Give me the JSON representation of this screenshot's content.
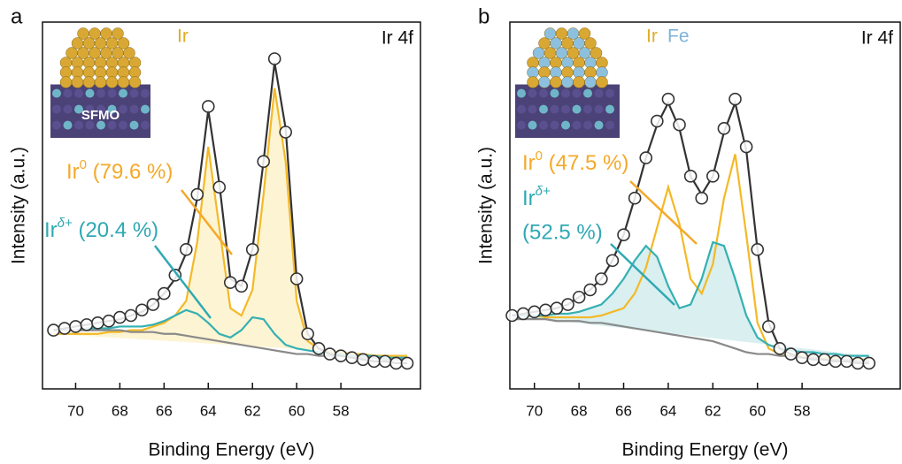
{
  "chart_data": [
    {
      "type": "line",
      "panel_label": "a",
      "corner_label": "Ir 4f",
      "x_label": "Binding Energy (eV)",
      "y_label": "Intensity (a.u.)",
      "xlim": [
        71.5,
        54.4
      ],
      "xticks": [
        70,
        68,
        66,
        64,
        62,
        60,
        58
      ],
      "ylim": [
        0,
        100
      ],
      "x": [
        71,
        70.5,
        70,
        69.5,
        69,
        68.5,
        68,
        67.5,
        67,
        66.5,
        66,
        65.5,
        65,
        64.5,
        64,
        63.5,
        63,
        62.5,
        62,
        61.5,
        61,
        60.5,
        60,
        59.5,
        59,
        58.5,
        58,
        57.5,
        57,
        56.5,
        56,
        55.5,
        55
      ],
      "series": [
        {
          "color": "#f4b926",
          "fill": "#fdf4d3",
          "values": [
            15,
            15,
            15,
            15,
            15,
            15.5,
            15.5,
            16,
            16,
            17,
            18,
            20,
            24,
            40,
            66,
            44,
            22,
            20,
            27,
            53,
            82,
            62,
            24,
            13,
            11,
            10,
            10,
            9.5,
            9.5,
            9,
            9,
            9,
            9
          ]
        },
        {
          "color": "#35b0b2",
          "values": [
            16,
            16,
            16,
            16.5,
            16.5,
            16.5,
            17,
            17,
            17,
            17.5,
            18.5,
            20,
            21.5,
            20.5,
            18,
            15,
            14,
            16,
            19.5,
            19,
            15,
            12,
            11,
            10.5,
            10,
            9.5,
            9.5,
            9,
            9,
            9,
            8.5,
            8.5,
            8.5
          ]
        },
        {
          "color": "#8a8a8a",
          "values": [
            16,
            16,
            16,
            16,
            16,
            16,
            16,
            15.5,
            15.5,
            15.5,
            15,
            15,
            14.5,
            14,
            13.5,
            13,
            12.5,
            12,
            11.5,
            11,
            10.5,
            10,
            9.5,
            9.5,
            9,
            9,
            9,
            8.5,
            8.5,
            8.5,
            8,
            8,
            8
          ]
        },
        {
          "color": "#333333",
          "values": [
            16,
            16.5,
            17,
            17.5,
            18,
            18.5,
            19,
            20,
            21,
            23,
            26,
            30,
            37,
            52,
            76,
            56,
            30,
            28,
            38,
            62,
            89,
            71,
            30,
            15,
            11,
            9.5,
            9,
            8.5,
            8,
            7.5,
            7.5,
            7,
            7
          ]
        },
        {
          "color": "#333333",
          "marker": "circle",
          "values": [
            16,
            16.5,
            17,
            17.5,
            18,
            18.5,
            19.5,
            20,
            21.5,
            23,
            26,
            31,
            38,
            53,
            77,
            55,
            29,
            28,
            38,
            62,
            90,
            70,
            30,
            15,
            11,
            9.5,
            9,
            8.5,
            8,
            7.5,
            7.5,
            7,
            7
          ]
        }
      ],
      "inset_labels": [
        {
          "text": "Ir",
          "color": "#e0ad2a"
        }
      ],
      "inset_substrate_label": "SFMO",
      "annotations": [
        {
          "text": "Ir",
          "sup": "0",
          "after": " (79.6 %)",
          "color": "#f4a92a"
        },
        {
          "text": "Ir",
          "sup": "δ+",
          "after": " (20.4 %)",
          "color": "#2fa9b3"
        }
      ]
    },
    {
      "type": "line",
      "panel_label": "b",
      "corner_label": "Ir 4f",
      "x_label": "Binding Energy (eV)",
      "y_label": "Intensity (a.u.)",
      "xlim": [
        71.1,
        53.6
      ],
      "xticks": [
        70,
        68,
        66,
        64,
        62,
        60,
        58
      ],
      "ylim": [
        0,
        100
      ],
      "x": [
        71,
        70.5,
        70,
        69.5,
        69,
        68.5,
        68,
        67.5,
        67,
        66.5,
        66,
        65.5,
        65,
        64.5,
        64,
        63.5,
        63,
        62.5,
        62,
        61.5,
        61,
        60.5,
        60,
        59.5,
        59,
        58.5,
        58,
        57.5,
        57,
        56.5,
        56,
        55.5,
        55
      ],
      "series": [
        {
          "color": "#f4b926",
          "values": [
            20,
            20,
            20,
            19.5,
            19.5,
            19.5,
            19.5,
            19.5,
            20,
            21,
            22,
            26,
            33,
            44,
            55,
            45,
            30,
            26,
            34,
            52,
            64,
            42,
            18,
            11,
            9.5,
            9,
            9,
            8.5,
            8.5,
            8.5,
            8,
            8,
            8
          ]
        },
        {
          "color": "#35b0b2",
          "fill": "#d9eff0",
          "values": [
            20,
            20,
            20,
            20,
            20.5,
            20.5,
            21,
            22,
            23,
            26,
            30,
            35,
            39,
            36,
            28,
            22,
            23,
            30,
            40,
            39,
            30,
            20,
            14,
            12,
            11,
            10.5,
            10,
            10,
            9.5,
            9.5,
            9,
            9,
            9
          ]
        },
        {
          "color": "#8a8a8a",
          "values": [
            19,
            19,
            19,
            19,
            18.5,
            18.5,
            18.5,
            18,
            18,
            17.5,
            17,
            16.5,
            16,
            15.5,
            15,
            14.5,
            14,
            13.5,
            13,
            12,
            11,
            10,
            9.5,
            9.5,
            9,
            9,
            8.5,
            8.5,
            8,
            8,
            8,
            7.5,
            7.5
          ]
        },
        {
          "color": "#333333",
          "values": [
            20,
            20.5,
            21,
            21.5,
            22,
            23,
            25,
            27,
            30,
            35,
            42,
            52,
            63,
            72,
            78,
            71,
            58,
            53,
            58,
            70,
            78,
            65,
            38,
            18,
            11,
            9.5,
            8.5,
            8,
            8,
            7.5,
            7.5,
            7,
            7
          ]
        },
        {
          "color": "#333333",
          "marker": "circle",
          "values": [
            20,
            20.5,
            21,
            21.5,
            22,
            23,
            25,
            27,
            30,
            35,
            42,
            52,
            63,
            73,
            79,
            72,
            58,
            52,
            58,
            71,
            79,
            66,
            38,
            17,
            11,
            9.5,
            8.5,
            8,
            8,
            7.5,
            7.5,
            7,
            7
          ]
        }
      ],
      "inset_labels": [
        {
          "text": "Ir",
          "color": "#e0ad2a"
        },
        {
          "text": "Fe",
          "color": "#7fb3d8"
        }
      ],
      "annotations": [
        {
          "text": "Ir",
          "sup": "0",
          "after": " (47.5 %)",
          "color": "#f4a92a"
        },
        {
          "text": "Ir",
          "sup": "δ+",
          "line2": "(52.5 %)",
          "color": "#2fa9b3"
        }
      ]
    }
  ]
}
